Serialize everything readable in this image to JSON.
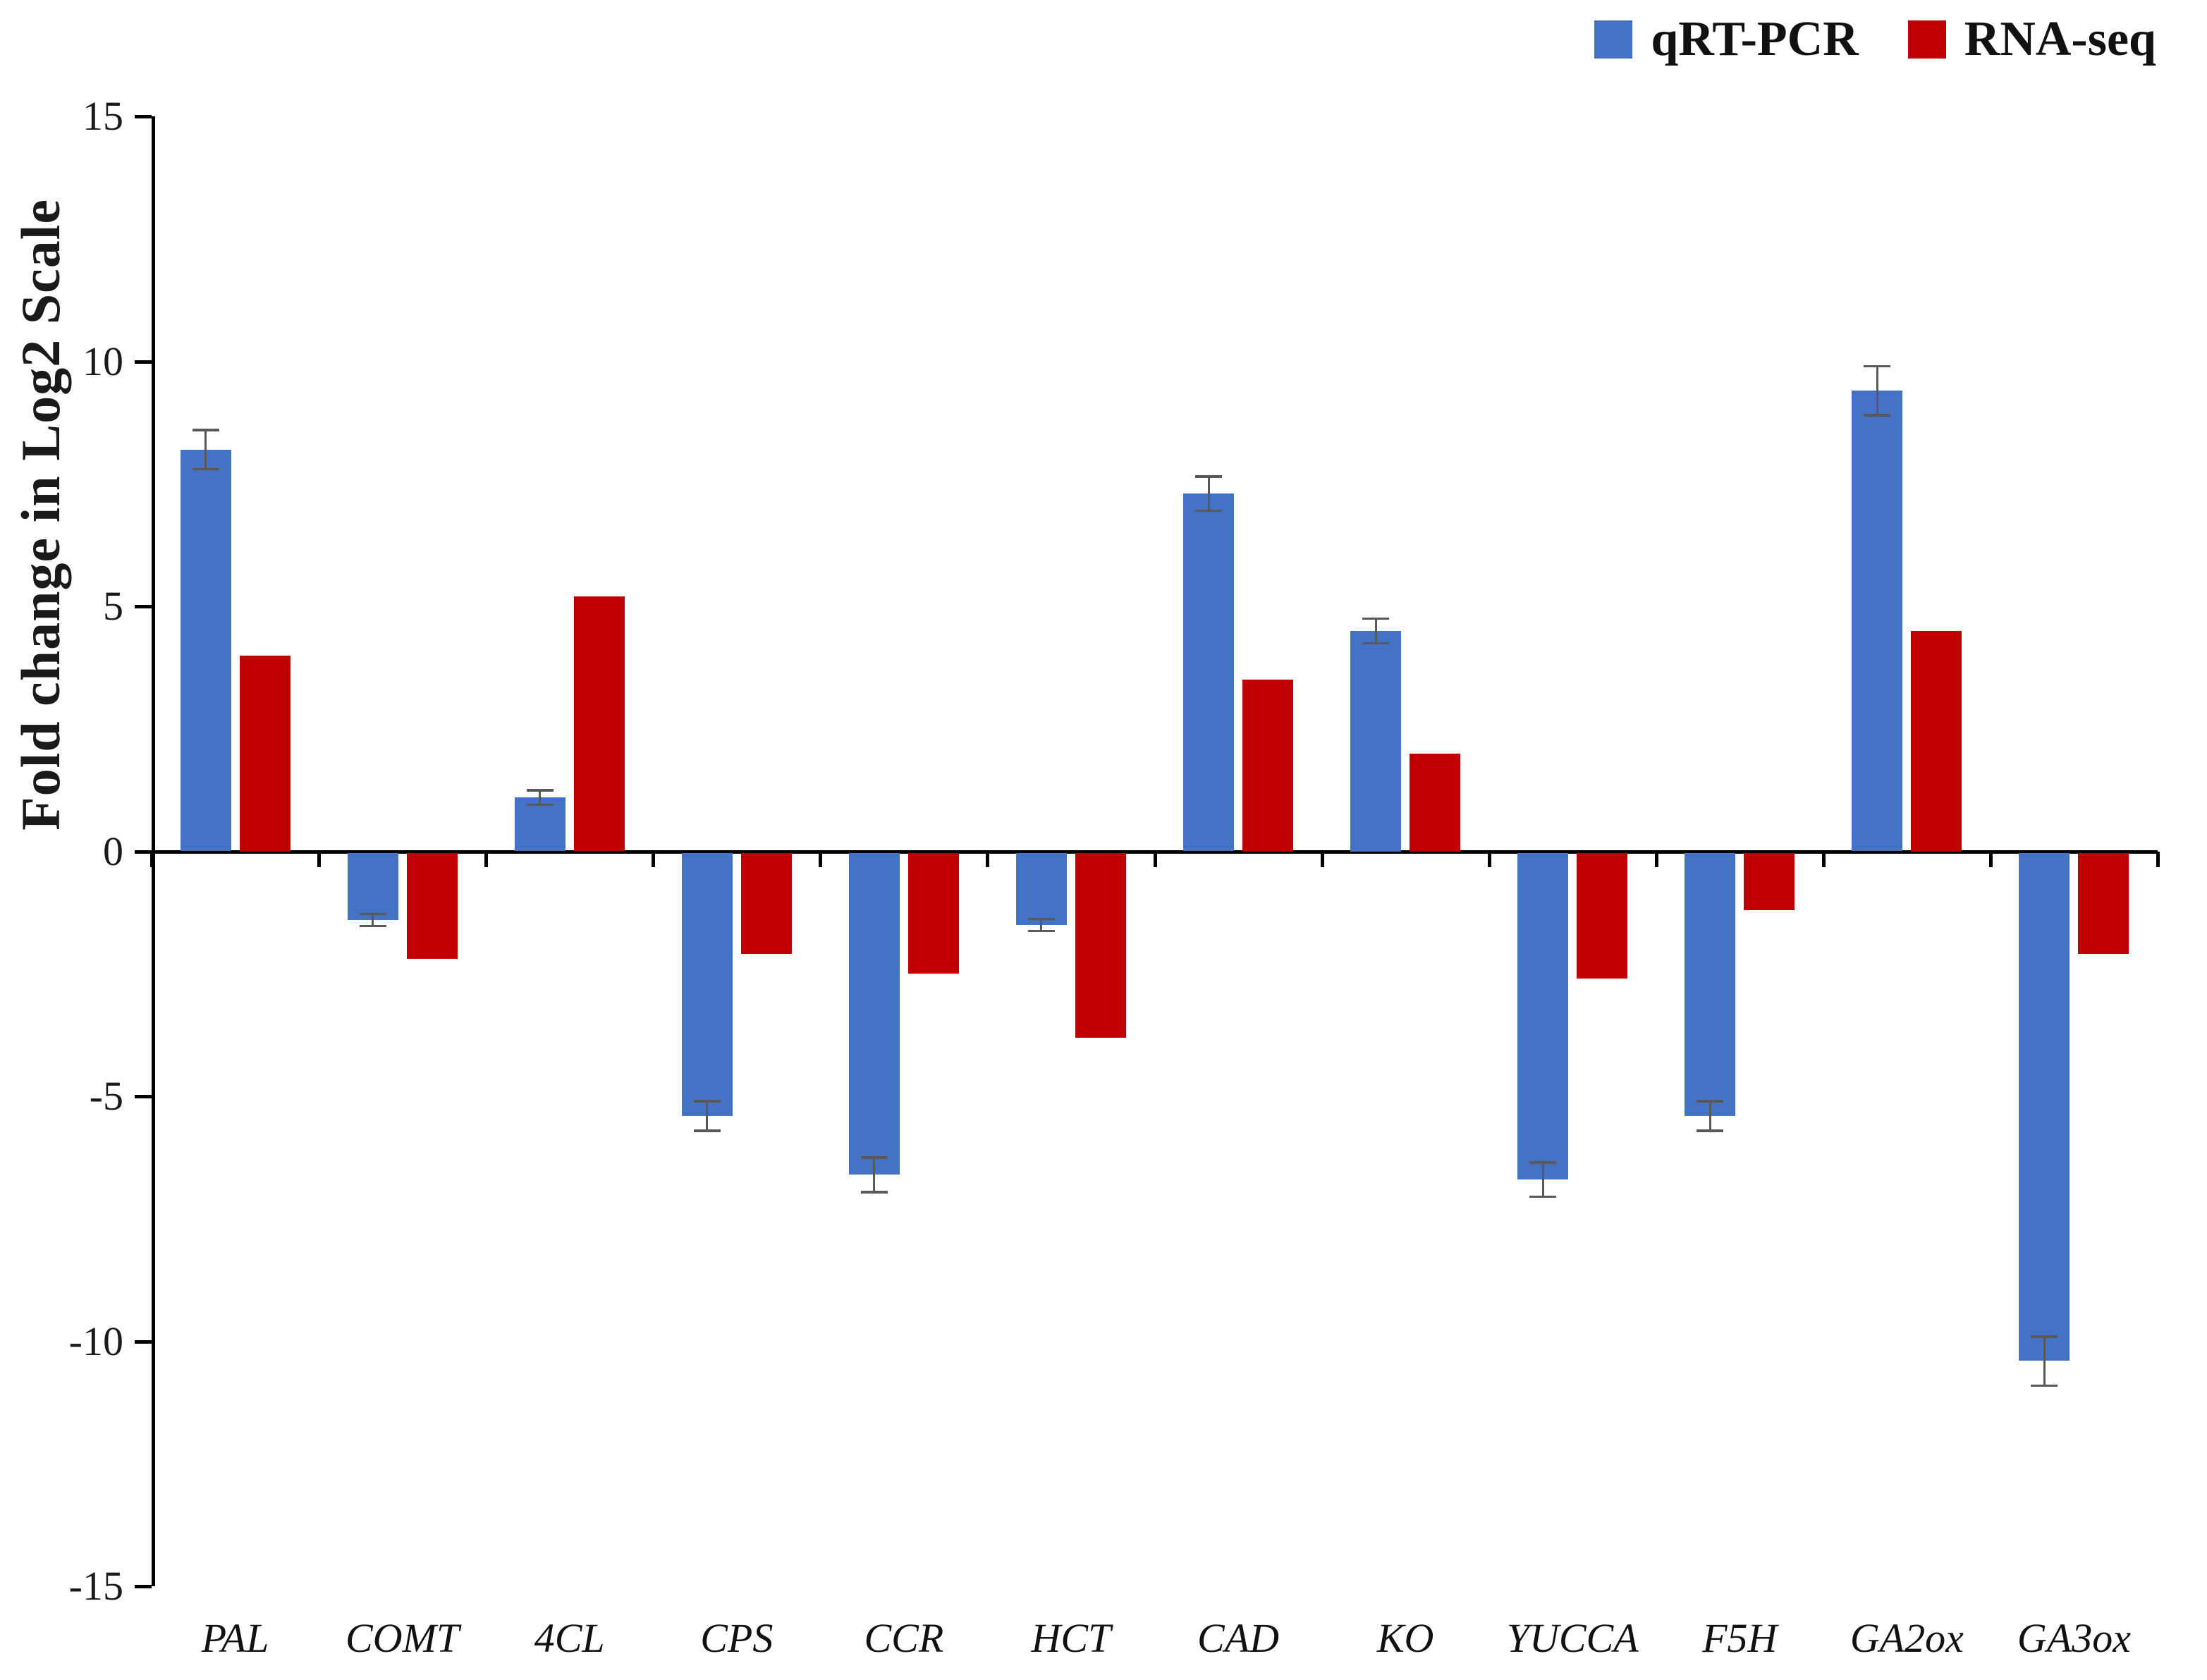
{
  "chart_data": {
    "type": "bar",
    "title": "",
    "ylabel": "Fold change in Log2 Scale",
    "xlabel": "",
    "ylim": [
      -15,
      15
    ],
    "yticks": [
      15,
      10,
      5,
      0,
      -5,
      -10,
      -15
    ],
    "grid": false,
    "legend_position": "top-right",
    "axis_color": "#000000",
    "error_bar_color": "#595959",
    "categories": [
      "PAL",
      "COMT",
      "4CL",
      "CPS",
      "CCR",
      "HCT",
      "CAD",
      "KO",
      "YUCCA",
      "F5H",
      "GA2ox",
      "GA3ox"
    ],
    "series": [
      {
        "name": "qRT-PCR",
        "color": "#4472C4",
        "values": [
          8.2,
          -1.4,
          1.1,
          -5.4,
          -6.6,
          -1.5,
          7.3,
          4.5,
          -6.7,
          -5.4,
          9.4,
          -10.4
        ],
        "errors": [
          0.4,
          0.12,
          0.15,
          0.3,
          0.35,
          0.12,
          0.35,
          0.25,
          0.35,
          0.3,
          0.5,
          0.5
        ]
      },
      {
        "name": "RNA-seq",
        "color": "#C00000",
        "values": [
          4.0,
          -2.2,
          5.2,
          -2.1,
          -2.5,
          -3.8,
          3.5,
          2.0,
          -2.6,
          -1.2,
          4.5,
          -2.1
        ],
        "errors": null
      }
    ]
  }
}
